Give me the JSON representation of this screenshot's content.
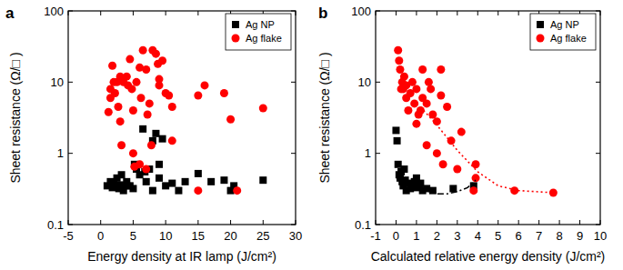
{
  "chart_data": [
    {
      "type": "scatter",
      "title": "a",
      "x_label": "Energy density at IR lamp (J/cm²)",
      "y_label": "Sheet resistance (Ω/□ )",
      "log": "y",
      "legend": "upper right",
      "xlim": [
        -5,
        30
      ],
      "xticks": [
        -5,
        0,
        5,
        10,
        15,
        20,
        25,
        30
      ],
      "ylim": [
        0.1,
        100
      ],
      "yticks": [
        0.1,
        1,
        10,
        100
      ],
      "series": [
        {
          "name": "Ag NP",
          "color": "#000000",
          "marker": "square",
          "x": [
            1,
            1.5,
            1.8,
            2,
            2.5,
            2.8,
            3,
            3.2,
            3.5,
            4,
            4.5,
            5,
            5.2,
            5.5,
            6,
            6.5,
            6.8,
            7,
            7.5,
            8,
            8.5,
            9,
            9.5,
            10,
            11,
            12,
            13,
            15,
            17,
            19,
            20,
            20.5,
            25,
            4,
            8,
            9
          ],
          "values": [
            0.35,
            0.4,
            0.33,
            0.38,
            0.45,
            0.32,
            0.36,
            0.5,
            0.3,
            0.4,
            0.35,
            0.32,
            0.7,
            0.6,
            0.5,
            2.2,
            0.55,
            0.4,
            0.6,
            1.5,
            1.9,
            0.7,
            1.6,
            0.35,
            0.38,
            0.3,
            0.4,
            0.52,
            0.4,
            0.42,
            0.3,
            0.35,
            0.42,
            0.35,
            0.3,
            0.45
          ]
        },
        {
          "name": "Ag flake",
          "color": "#ff0000",
          "marker": "circle",
          "x": [
            1.2,
            1.5,
            1.8,
            1.5,
            2,
            2.2,
            2.5,
            2.7,
            3,
            3,
            3.2,
            3.5,
            4,
            4.2,
            4.5,
            4.8,
            5,
            5,
            5.2,
            5.5,
            6,
            6.2,
            6.5,
            7,
            7.2,
            7.5,
            7.8,
            8,
            8.5,
            8.8,
            9,
            9.5,
            10,
            10.5,
            7,
            11,
            11,
            15,
            15,
            16,
            19,
            20,
            21,
            25,
            6,
            9
          ],
          "values": [
            3.8,
            6,
            17,
            8,
            10,
            7,
            10,
            4.5,
            2.8,
            12,
            1.3,
            10,
            12,
            9,
            21,
            8,
            4,
            1,
            0.65,
            10,
            16,
            6,
            28,
            15,
            3.5,
            5,
            1.3,
            28,
            25,
            18,
            9,
            20,
            7,
            6.5,
            0.6,
            1.5,
            4.5,
            0.3,
            6.5,
            9,
            7,
            3,
            0.3,
            4.3,
            0.7,
            11
          ]
        }
      ]
    },
    {
      "type": "scatter",
      "title": "b",
      "x_label": "Calculated relative energy density (J/cm²)",
      "y_label": "Sheet resistance (Ω/□ )",
      "log": "y",
      "legend": "upper right",
      "xlim": [
        -1,
        10
      ],
      "xticks": [
        -1,
        0,
        1,
        2,
        3,
        4,
        5,
        6,
        7,
        8,
        9,
        10
      ],
      "ylim": [
        0.1,
        100
      ],
      "yticks": [
        0.1,
        1,
        10,
        100
      ],
      "series": [
        {
          "name": "Ag NP",
          "color": "#000000",
          "marker": "square",
          "x": [
            0,
            0.05,
            0.1,
            0.15,
            0.2,
            0.3,
            0.35,
            0.4,
            0.5,
            0.6,
            0.7,
            0.8,
            0.9,
            1,
            1.1,
            1.2,
            1.5,
            1.8,
            2.8,
            3.8,
            0.25,
            0.45,
            1,
            1.3
          ],
          "values": [
            2.1,
            1.5,
            0.7,
            0.5,
            0.45,
            0.4,
            0.35,
            0.6,
            0.3,
            0.38,
            0.32,
            0.36,
            0.4,
            0.33,
            0.35,
            0.38,
            0.32,
            0.3,
            0.32,
            0.35,
            0.55,
            0.42,
            0.45,
            0.3
          ]
        },
        {
          "name": "Ag flake",
          "color": "#ff0000",
          "marker": "circle",
          "x": [
            0.1,
            0.15,
            0.2,
            0.3,
            0.35,
            0.4,
            0.5,
            0.5,
            0.6,
            0.7,
            0.8,
            0.9,
            1,
            1,
            1.1,
            1.2,
            1.3,
            1.3,
            1.5,
            1.5,
            1.7,
            1.8,
            2,
            2,
            2.2,
            2.2,
            2.3,
            2.5,
            2.7,
            3,
            3.2,
            3.8,
            3.9,
            3.9,
            5.8,
            7.7,
            1.6,
            0.25
          ],
          "values": [
            28,
            20,
            15,
            10,
            8,
            12,
            6,
            9,
            4,
            7,
            10,
            5,
            2.6,
            8,
            3.5,
            4,
            6,
            15,
            5,
            1.3,
            8,
            3.5,
            2.8,
            1,
            15,
            6.5,
            0.7,
            4.5,
            1.5,
            0.6,
            2,
            0.3,
            0.7,
            0.45,
            0.3,
            0.28,
            10,
            8
          ]
        },
        {
          "type": "line",
          "color": "#ff0000",
          "line_style": "dotted",
          "x": [
            1.2,
            2,
            3,
            4,
            5,
            6,
            7.7
          ],
          "values": [
            4.5,
            2.5,
            1.1,
            0.55,
            0.35,
            0.3,
            0.28
          ]
        },
        {
          "type": "line",
          "color": "#000000",
          "line_style": "dashdot",
          "x": [
            0.9,
            1.5,
            2,
            2.5,
            3,
            3.5,
            3.9
          ],
          "values": [
            0.42,
            0.3,
            0.27,
            0.27,
            0.29,
            0.33,
            0.42
          ]
        }
      ]
    }
  ]
}
